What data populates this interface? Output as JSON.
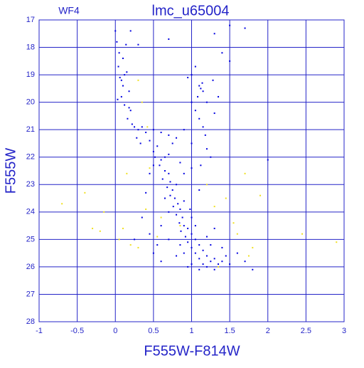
{
  "chart_data": {
    "type": "scatter",
    "title": "lmc_u65004",
    "annotation": "WF4",
    "x_label": "F555W-F814W",
    "y_label": "F555W",
    "xlim": [
      -1,
      3
    ],
    "ylim": [
      28,
      17
    ],
    "xticks": [
      -1,
      -0.5,
      0,
      0.5,
      1,
      1.5,
      2,
      2.5,
      3
    ],
    "yticks": [
      17,
      18,
      19,
      20,
      21,
      22,
      23,
      24,
      25,
      26,
      27,
      28
    ],
    "grid": true,
    "series": [
      {
        "color": "#0000e0",
        "x": [
          0.0,
          0.02,
          0.05,
          0.04,
          0.06,
          0.1,
          0.08,
          0.12,
          0.15,
          0.18,
          0.2,
          0.1,
          0.14,
          0.16,
          0.22,
          0.25,
          0.18,
          0.08,
          0.03,
          0.12,
          0.3,
          0.35,
          0.4,
          0.5,
          0.6,
          0.7,
          0.8,
          0.9,
          0.28,
          0.33,
          0.45,
          0.55,
          0.75,
          0.5,
          0.52,
          0.6,
          0.58,
          0.65,
          0.7,
          0.62,
          0.72,
          0.68,
          0.75,
          0.8,
          0.72,
          0.78,
          0.82,
          0.76,
          0.85,
          0.8,
          0.88,
          0.84,
          0.9,
          0.86,
          0.95,
          0.92,
          1.0,
          0.95,
          1.05,
          1.0,
          1.1,
          1.05,
          1.15,
          1.1,
          1.2,
          1.15,
          1.25,
          1.3,
          1.35,
          1.4,
          1.45,
          1.5,
          0.9,
          0.85,
          0.8,
          1.0,
          1.2,
          1.3,
          0.95,
          1.1,
          0.7,
          0.65,
          0.9,
          1.0,
          1.05,
          0.98,
          0.6,
          0.7,
          0.55,
          1.2,
          1.25,
          1.4,
          1.3,
          0.4,
          0.35,
          0.45,
          0.25,
          0.5,
          0.6,
          1.6,
          1.7,
          1.8,
          2.0,
          0.85,
          0.9,
          1.0,
          1.1,
          0.7,
          0.65,
          0.5,
          0.45,
          1.1,
          1.12,
          1.15,
          1.08,
          1.14,
          1.2,
          1.05,
          1.1,
          1.15,
          1.18,
          1.0,
          1.2,
          1.25,
          1.3,
          1.35,
          1.28,
          1.05,
          1.0,
          1.4,
          1.5,
          1.7,
          1.3,
          1.12,
          1.0,
          0.2,
          0.7,
          1.5,
          0.3,
          0.95
        ],
        "y": [
          17.4,
          17.8,
          18.2,
          18.7,
          19.1,
          19.4,
          19.8,
          20.1,
          18.9,
          19.6,
          20.3,
          18.4,
          17.9,
          20.6,
          20.8,
          20.9,
          20.2,
          19.2,
          19.9,
          19.0,
          21.0,
          20.9,
          21.1,
          21.0,
          21.1,
          21.2,
          21.3,
          21.0,
          21.3,
          21.5,
          21.4,
          21.6,
          21.5,
          21.8,
          22.0,
          22.1,
          22.3,
          22.5,
          22.6,
          22.8,
          22.9,
          23.1,
          23.2,
          23.0,
          23.4,
          23.5,
          23.7,
          23.8,
          23.9,
          24.1,
          24.2,
          24.4,
          24.5,
          24.7,
          24.6,
          24.9,
          24.8,
          25.1,
          25.0,
          25.3,
          25.2,
          25.5,
          25.4,
          25.7,
          25.6,
          25.9,
          25.8,
          25.7,
          25.9,
          25.8,
          25.6,
          25.9,
          25.5,
          25.2,
          25.6,
          25.9,
          26.0,
          26.1,
          26.0,
          26.1,
          24.0,
          23.5,
          23.6,
          24.2,
          24.5,
          23.9,
          24.5,
          25.0,
          25.2,
          24.9,
          25.2,
          25.3,
          24.6,
          23.3,
          24.2,
          24.8,
          25.0,
          25.5,
          25.8,
          25.5,
          25.8,
          26.1,
          22.1,
          22.2,
          22.6,
          22.4,
          23.2,
          21.9,
          22.0,
          22.3,
          22.6,
          19.4,
          19.5,
          19.6,
          19.8,
          19.3,
          20.0,
          20.3,
          20.6,
          20.9,
          21.2,
          21.5,
          21.7,
          22.0,
          20.4,
          19.8,
          19.2,
          18.7,
          19.0,
          18.2,
          17.2,
          17.3,
          17.5,
          22.3,
          20.0,
          17.4,
          17.7,
          18.5,
          17.9,
          19.1
        ]
      },
      {
        "color": "#f0e020",
        "x": [
          -0.7,
          -0.4,
          -0.3,
          -0.2,
          -0.15,
          0.05,
          0.1,
          0.2,
          0.15,
          0.4,
          0.45,
          0.6,
          0.85,
          1.3,
          1.45,
          1.55,
          1.6,
          1.7,
          1.8,
          1.9,
          2.45,
          2.9,
          1.35,
          0.3,
          1.2,
          0.3,
          0.35,
          0.42,
          1.75,
          0.55
        ],
        "y": [
          23.7,
          23.3,
          24.6,
          24.7,
          24.0,
          25.0,
          24.6,
          25.2,
          22.6,
          23.9,
          22.4,
          24.2,
          24.5,
          23.8,
          23.5,
          24.4,
          24.8,
          22.6,
          25.3,
          23.4,
          24.8,
          25.1,
          26.0,
          25.3,
          23.0,
          19.2,
          20.0,
          20.9,
          25.6,
          24.9
        ]
      }
    ]
  }
}
